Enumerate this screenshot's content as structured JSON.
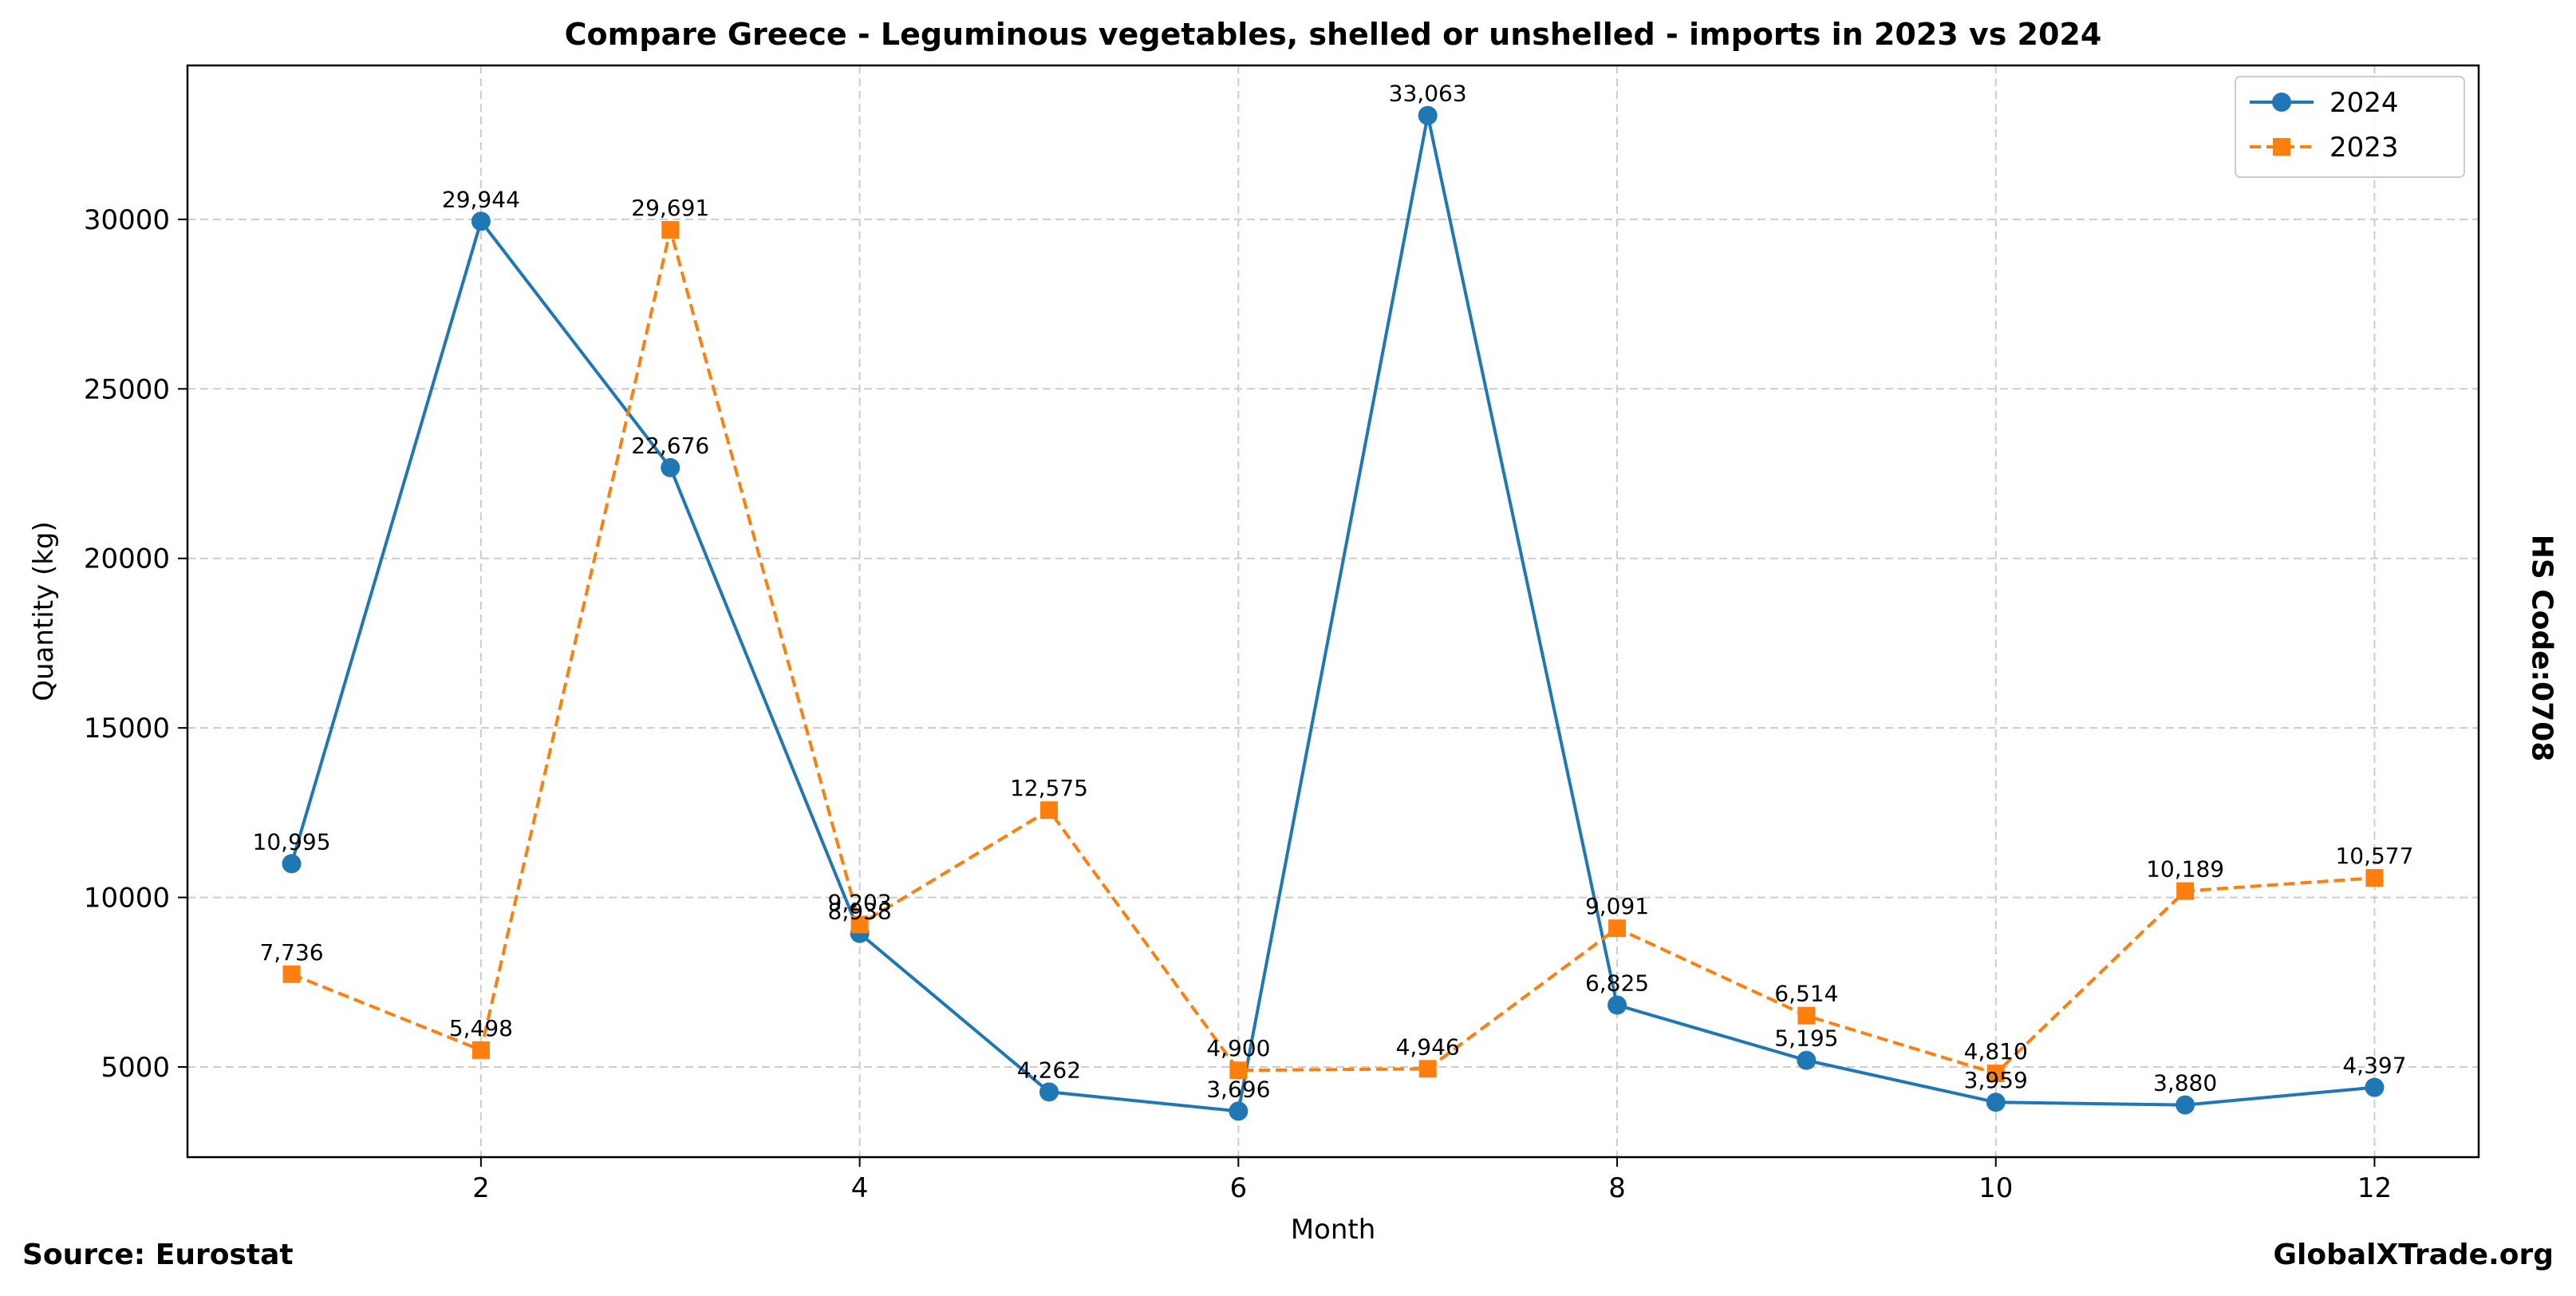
{
  "footer": {
    "source": "Source: Eurostat",
    "site": "GlobalXTrade.org",
    "hs_code": "HS Code:0708"
  },
  "colors": {
    "series_2024": "#1f77b4",
    "series_2023": "#ff7f0e",
    "grid": "#cccccc"
  },
  "chart_data": {
    "type": "line",
    "title": "Compare Greece - Leguminous vegetables, shelled or unshelled - imports in 2023 vs 2024",
    "xlabel": "Month",
    "ylabel": "Quantity (kg)",
    "x": [
      1,
      2,
      3,
      4,
      5,
      6,
      7,
      8,
      9,
      10,
      11,
      12
    ],
    "xlim": [
      0.45,
      12.55
    ],
    "ylim": [
      2340,
      34540
    ],
    "xticks": [
      2,
      4,
      6,
      8,
      10,
      12
    ],
    "yticks": [
      5000,
      10000,
      15000,
      20000,
      25000,
      30000
    ],
    "grid": true,
    "legend_position": "top-right",
    "series": [
      {
        "name": "2024",
        "marker": "circle",
        "line": "solid",
        "values": [
          10995,
          29944,
          22676,
          8938,
          4262,
          3696,
          33063,
          6825,
          5195,
          3959,
          3880,
          4397
        ],
        "labels": [
          "10,995",
          "29,944",
          "22,676",
          "8,938",
          "4,262",
          "3,696",
          "33,063",
          "6,825",
          "5,195",
          "3,959",
          "3,880",
          "4,397"
        ]
      },
      {
        "name": "2023",
        "marker": "square",
        "line": "dashed",
        "values": [
          7736,
          5498,
          29691,
          9203,
          12575,
          4900,
          4946,
          9091,
          6514,
          4810,
          10189,
          10577
        ],
        "labels": [
          "7,736",
          "5,498",
          "29,691",
          "9,203",
          "12,575",
          "4,900",
          "4,946",
          "9,091",
          "6,514",
          "4,810",
          "10,189",
          "10,577"
        ]
      }
    ]
  }
}
